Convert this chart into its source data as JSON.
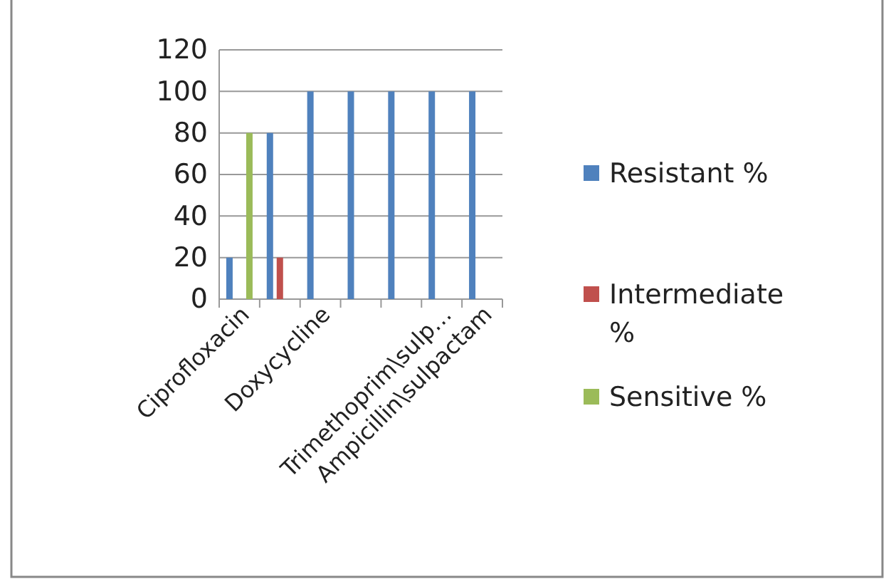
{
  "chart_data": {
    "type": "bar",
    "categories": [
      "Ciprofloxacin",
      null,
      "Doxycycline",
      null,
      null,
      "Trimethoprim\\sulp…",
      "Ampicillin\\sulpactam"
    ],
    "series": [
      {
        "name": "Resistant %",
        "color": "#4f81bd",
        "values": [
          20,
          80,
          100,
          100,
          100,
          100,
          100
        ]
      },
      {
        "name": "Intermediate %",
        "color": "#c0504d",
        "values": [
          null,
          20,
          null,
          null,
          null,
          null,
          null
        ]
      },
      {
        "name": "Sensitive %",
        "color": "#9bbb59",
        "values": [
          80,
          null,
          null,
          null,
          null,
          null,
          null
        ]
      }
    ],
    "ylim": [
      0,
      120
    ],
    "yticks": [
      0,
      20,
      40,
      60,
      80,
      100,
      120
    ],
    "grid": "y",
    "legend": "right"
  }
}
